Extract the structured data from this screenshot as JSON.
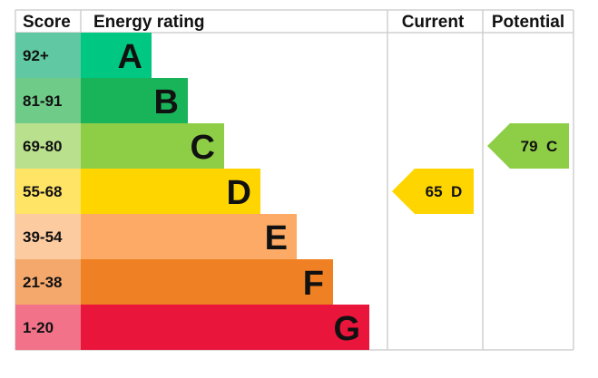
{
  "chart_data": {
    "type": "table",
    "headers": {
      "score": "Score",
      "rating": "Energy rating",
      "current": "Current",
      "potential": "Potential"
    },
    "bands": [
      {
        "letter": "A",
        "range": "92+",
        "color": "#00c781",
        "light": "#60c8a2"
      },
      {
        "letter": "B",
        "range": "81-91",
        "color": "#19b459",
        "light": "#6ecb88"
      },
      {
        "letter": "C",
        "range": "69-80",
        "color": "#8dce46",
        "light": "#b9e08c"
      },
      {
        "letter": "D",
        "range": "55-68",
        "color": "#ffd500",
        "light": "#ffe466"
      },
      {
        "letter": "E",
        "range": "39-54",
        "color": "#fcaa65",
        "light": "#fdcba0"
      },
      {
        "letter": "F",
        "range": "21-38",
        "color": "#ef8023",
        "light": "#f5a86c"
      },
      {
        "letter": "G",
        "range": "1-20",
        "color": "#e9153b",
        "light": "#f27389"
      }
    ],
    "current": {
      "value": 65,
      "letter": "D",
      "label": "65  D"
    },
    "potential": {
      "value": 79,
      "letter": "C",
      "label": "79  C"
    }
  }
}
